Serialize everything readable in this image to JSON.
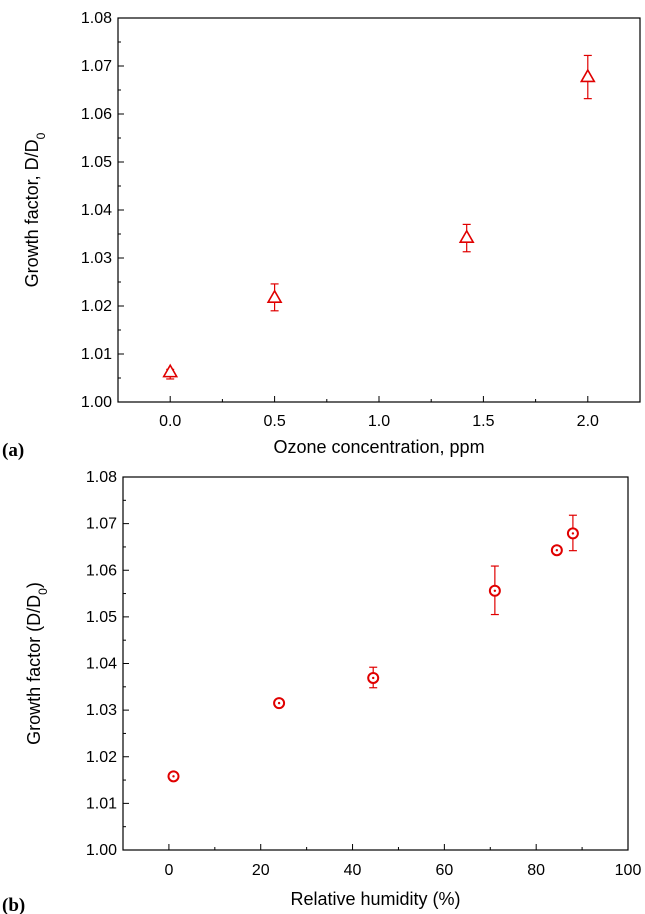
{
  "chart_data": [
    {
      "panel_label": "(a)",
      "type": "scatter",
      "marker": "triangle",
      "color": "#e00000",
      "xlabel": "Ozone concentration, ppm",
      "ylabel_main": "Growth factor,  D/D",
      "ylabel_sub": "0",
      "xlim": [
        -0.25,
        2.25
      ],
      "ylim": [
        1.0,
        1.08
      ],
      "xticks": [
        0.0,
        0.5,
        1.0,
        1.5,
        2.0
      ],
      "xtick_labels": [
        "0.0",
        "0.5",
        "1.0",
        "1.5",
        "2.0"
      ],
      "yticks": [
        1.0,
        1.01,
        1.02,
        1.03,
        1.04,
        1.05,
        1.06,
        1.07,
        1.08
      ],
      "ytick_labels": [
        "1.00",
        "1.01",
        "1.02",
        "1.03",
        "1.04",
        "1.05",
        "1.06",
        "1.07",
        "1.08"
      ],
      "points": [
        {
          "x": 0.0,
          "y": 1.0063,
          "err_low": 1.0048,
          "err_high": 1.0068
        },
        {
          "x": 0.5,
          "y": 1.0218,
          "err_low": 1.019,
          "err_high": 1.0246
        },
        {
          "x": 1.42,
          "y": 1.0343,
          "err_low": 1.0313,
          "err_high": 1.037
        },
        {
          "x": 2.0,
          "y": 1.0678,
          "err_low": 1.0632,
          "err_high": 1.0722
        }
      ]
    },
    {
      "panel_label": "(b)",
      "type": "scatter",
      "marker": "circle-dot",
      "color": "#e00000",
      "xlabel": "Relative humidity (%)",
      "ylabel_main": "Growth factor (D/D",
      "ylabel_sub": "0",
      "ylabel_tail": ")",
      "xlim": [
        -10,
        100
      ],
      "ylim": [
        1.0,
        1.08
      ],
      "xticks": [
        0,
        20,
        40,
        60,
        80,
        100
      ],
      "xtick_labels": [
        "0",
        "20",
        "40",
        "60",
        "80",
        "100"
      ],
      "yticks": [
        1.0,
        1.01,
        1.02,
        1.03,
        1.04,
        1.05,
        1.06,
        1.07,
        1.08
      ],
      "ytick_labels": [
        "1.00",
        "1.01",
        "1.02",
        "1.03",
        "1.04",
        "1.05",
        "1.06",
        "1.07",
        "1.08"
      ],
      "points": [
        {
          "x": 1,
          "y": 1.0158
        },
        {
          "x": 24,
          "y": 1.0315
        },
        {
          "x": 44.5,
          "y": 1.0369,
          "err_low": 1.0348,
          "err_high": 1.0392
        },
        {
          "x": 71,
          "y": 1.0556,
          "err_low": 1.0505,
          "err_high": 1.0609
        },
        {
          "x": 84.5,
          "y": 1.0643
        },
        {
          "x": 88,
          "y": 1.0679,
          "err_low": 1.0642,
          "err_high": 1.0718
        }
      ]
    }
  ]
}
